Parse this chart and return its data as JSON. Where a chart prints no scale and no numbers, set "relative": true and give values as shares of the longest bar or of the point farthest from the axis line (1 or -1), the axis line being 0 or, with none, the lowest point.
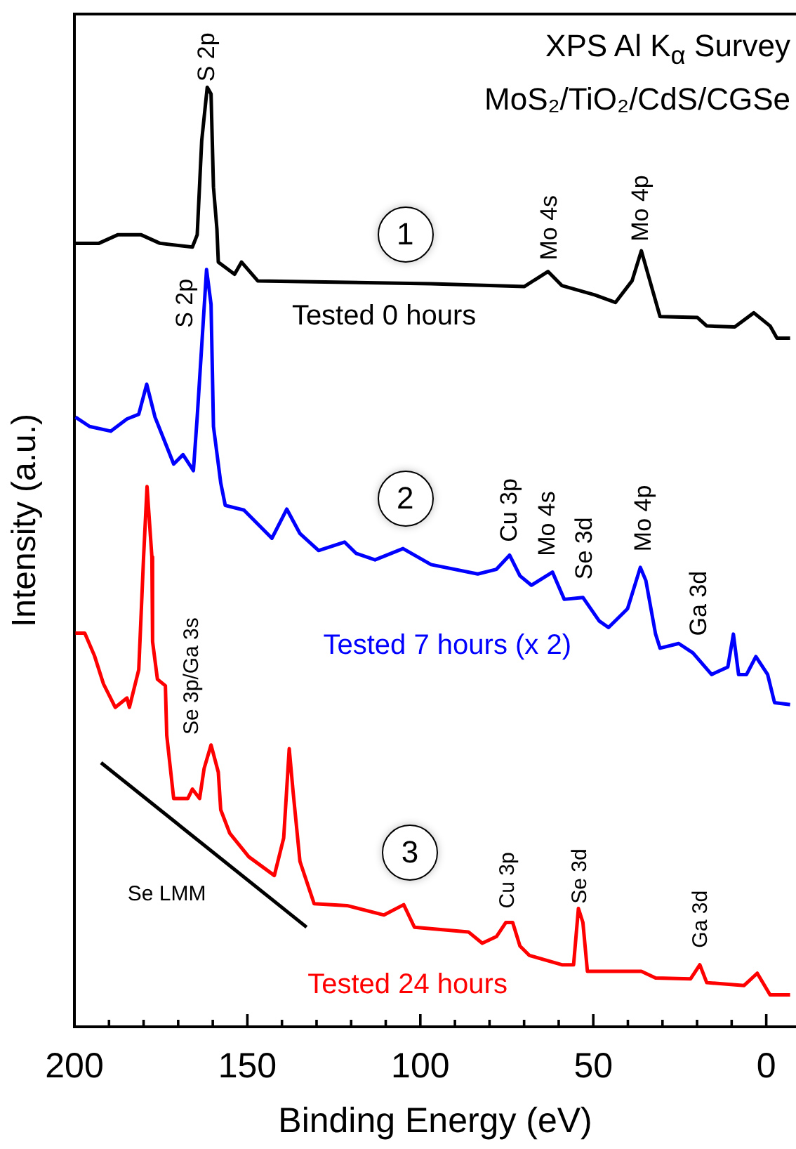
{
  "chart_data": {
    "type": "line",
    "title": "XPS Al K$_{α}$ Survey",
    "subtitle": "MoS₂/TiO₂/CdS/CGSe",
    "xlabel": "Binding Energy (eV)",
    "ylabel": "Intensity (a.u.)",
    "relative": true,
    "tick_labels": "x",
    "legend": false,
    "grid": false,
    "marker": "none",
    "line_style": "solid",
    "xlim": [
      200,
      -8.6
    ],
    "xticks": [
      200,
      {
        "value": 190,
        "label": null
      },
      {
        "value": 180,
        "label": null
      },
      {
        "value": 170,
        "label": null
      },
      {
        "value": 160,
        "label": null
      },
      150,
      {
        "value": 140,
        "label": null
      },
      {
        "value": 130,
        "label": null
      },
      {
        "value": 120,
        "label": null
      },
      {
        "value": 110,
        "label": null
      },
      100,
      {
        "value": 90,
        "label": null
      },
      {
        "value": 80,
        "label": null
      },
      {
        "value": 70,
        "label": null
      },
      {
        "value": 60,
        "label": null
      },
      50,
      {
        "value": 40,
        "label": null
      },
      {
        "value": 30,
        "label": null
      },
      {
        "value": 20,
        "label": null
      },
      {
        "value": 10,
        "label": null
      },
      0
    ],
    "series": [
      {
        "name": "Tested 0 hours",
        "color": "#000000",
        "x": [
          199.7,
          192.9,
          187.5,
          180.7,
          175.3,
          165.9,
          164.5,
          163.2,
          161.6,
          160.5,
          159.8,
          158.8,
          158.4,
          153.7,
          151.7,
          147,
          96.9,
          69.9,
          63.1,
          59.1,
          49.6,
          43.6,
          38.8,
          36.1,
          34.1,
          30.7,
          19.9,
          17.2,
          9.1,
          3.6,
          -1.1,
          -3.1,
          -6.9
        ],
        "values": [
          0.834,
          0.834,
          0.843,
          0.843,
          0.834,
          0.83,
          0.843,
          0.943,
          1,
          0.993,
          0.894,
          0.849,
          0.814,
          0.801,
          0.814,
          0.794,
          0.791,
          0.788,
          0.804,
          0.789,
          0.779,
          0.771,
          0.794,
          0.826,
          0.8,
          0.756,
          0.755,
          0.746,
          0.745,
          0.76,
          0.746,
          0.733,
          0.733
        ]
      },
      {
        "name": "Tested 7 hours (x 2)",
        "color": "#0000ff",
        "x": [
          199.7,
          195.6,
          189.5,
          184.8,
          181.4,
          179.1,
          176.7,
          174,
          171.3,
          168.6,
          165.6,
          164.5,
          161.8,
          160.5,
          159.8,
          157.7,
          156.4,
          151,
          142.9,
          138.6,
          134.8,
          129.4,
          121.9,
          118.6,
          113.1,
          105,
          96.9,
          83.4,
          78,
          74.2,
          71.2,
          67.9,
          61.8,
          58.4,
          53,
          48.3,
          45.6,
          40.1,
          36.4,
          34.8,
          32,
          30.7,
          25.3,
          21.2,
          15.8,
          11.1,
          9.5,
          8,
          5.7,
          3,
          -0.4,
          -2.4,
          -6.9
        ],
        "values": [
          0.649,
          0.639,
          0.634,
          0.647,
          0.652,
          0.684,
          0.649,
          0.624,
          0.599,
          0.609,
          0.592,
          0.649,
          0.806,
          0.769,
          0.639,
          0.579,
          0.555,
          0.55,
          0.52,
          0.551,
          0.525,
          0.507,
          0.516,
          0.504,
          0.497,
          0.509,
          0.492,
          0.482,
          0.487,
          0.502,
          0.48,
          0.47,
          0.484,
          0.455,
          0.457,
          0.432,
          0.425,
          0.445,
          0.489,
          0.475,
          0.418,
          0.403,
          0.408,
          0.398,
          0.375,
          0.383,
          0.418,
          0.375,
          0.375,
          0.394,
          0.375,
          0.345,
          0.343
        ]
      },
      {
        "name": "Tested 24 hours",
        "color": "#ff0000",
        "x": [
          199.7,
          197,
          194.2,
          191.6,
          188.2,
          184.8,
          184.1,
          181.4,
          180,
          179,
          177.6,
          177.4,
          176,
          173.7,
          173.3,
          171.3,
          167.2,
          165.9,
          163.8,
          162.5,
          160.5,
          158.4,
          157.7,
          155.1,
          149.6,
          142.2,
          139.5,
          137.9,
          136.8,
          134.8,
          130.7,
          121.2,
          110.5,
          104.8,
          101.7,
          86.1,
          82.1,
          78,
          75.3,
          73.3,
          71.2,
          68.5,
          59.1,
          55.7,
          54.3,
          53,
          51.7,
          36.1,
          32,
          21.9,
          19.2,
          17.2,
          6.4,
          2.6,
          -1.1,
          -6.9
        ],
        "values": [
          0.419,
          0.419,
          0.395,
          0.365,
          0.34,
          0.35,
          0.34,
          0.38,
          0.5,
          0.575,
          0.5,
          0.41,
          0.37,
          0.363,
          0.31,
          0.243,
          0.243,
          0.253,
          0.243,
          0.275,
          0.3,
          0.271,
          0.231,
          0.206,
          0.181,
          0.161,
          0.201,
          0.296,
          0.251,
          0.176,
          0.131,
          0.129,
          0.119,
          0.13,
          0.106,
          0.101,
          0.089,
          0.096,
          0.111,
          0.111,
          0.086,
          0.076,
          0.066,
          0.066,
          0.126,
          0.111,
          0.059,
          0.059,
          0.052,
          0.051,
          0.066,
          0.047,
          0.044,
          0.057,
          0.034,
          0.034
        ]
      }
    ],
    "annotations": [
      "S 2p",
      "Mo 4s",
      "Mo 4p",
      "S 2p",
      "Cu 3p",
      "Mo 4s",
      "Se 3d",
      "Mo 4p",
      "Ga 3d",
      "Se 3p/Ga 3s",
      "Cu 3p",
      "Se 3d",
      "Ga 3d",
      "Se LMM",
      "1",
      "2",
      "3"
    ]
  }
}
